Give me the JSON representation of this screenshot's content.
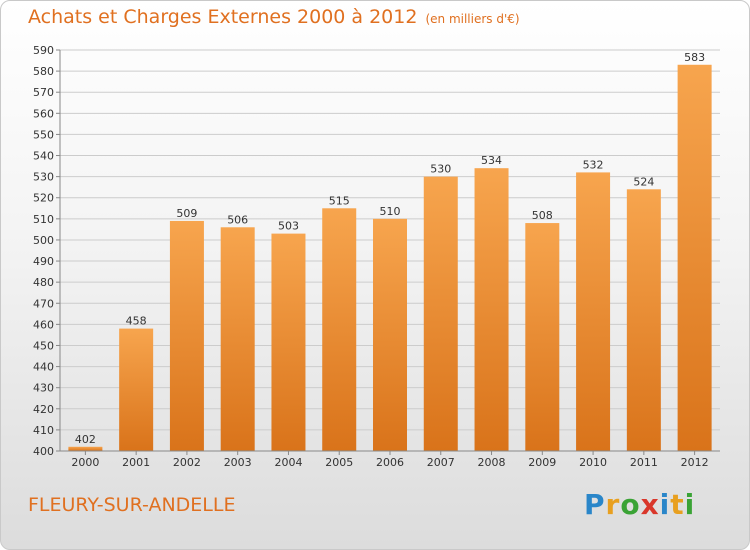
{
  "header": {
    "title": "Achats et Charges Externes 2000 à 2012",
    "subtitle": "(en milliers d'€)"
  },
  "footer": {
    "place": "FLEURY-SUR-ANDELLE",
    "logo_letters": [
      "P",
      "r",
      "o",
      "x",
      "i",
      "t",
      "i"
    ]
  },
  "colors": {
    "bar_light": "#f7a54e",
    "bar_dark": "#d9731a",
    "title": "#e07020",
    "grid": "#cccccc"
  },
  "chart_data": {
    "type": "bar",
    "title": "Achats et Charges Externes 2000 à 2012",
    "subtitle": "(en milliers d'€)",
    "categories": [
      "2000",
      "2001",
      "2002",
      "2003",
      "2004",
      "2005",
      "2006",
      "2007",
      "2008",
      "2009",
      "2010",
      "2011",
      "2012"
    ],
    "values": [
      402,
      458,
      509,
      506,
      503,
      515,
      510,
      530,
      534,
      508,
      532,
      524,
      583
    ],
    "ylim": [
      400,
      590
    ],
    "yticks": [
      400,
      410,
      420,
      430,
      440,
      450,
      460,
      470,
      480,
      490,
      500,
      510,
      520,
      530,
      540,
      550,
      560,
      570,
      580,
      590
    ],
    "grid": true,
    "data_labels": true
  }
}
